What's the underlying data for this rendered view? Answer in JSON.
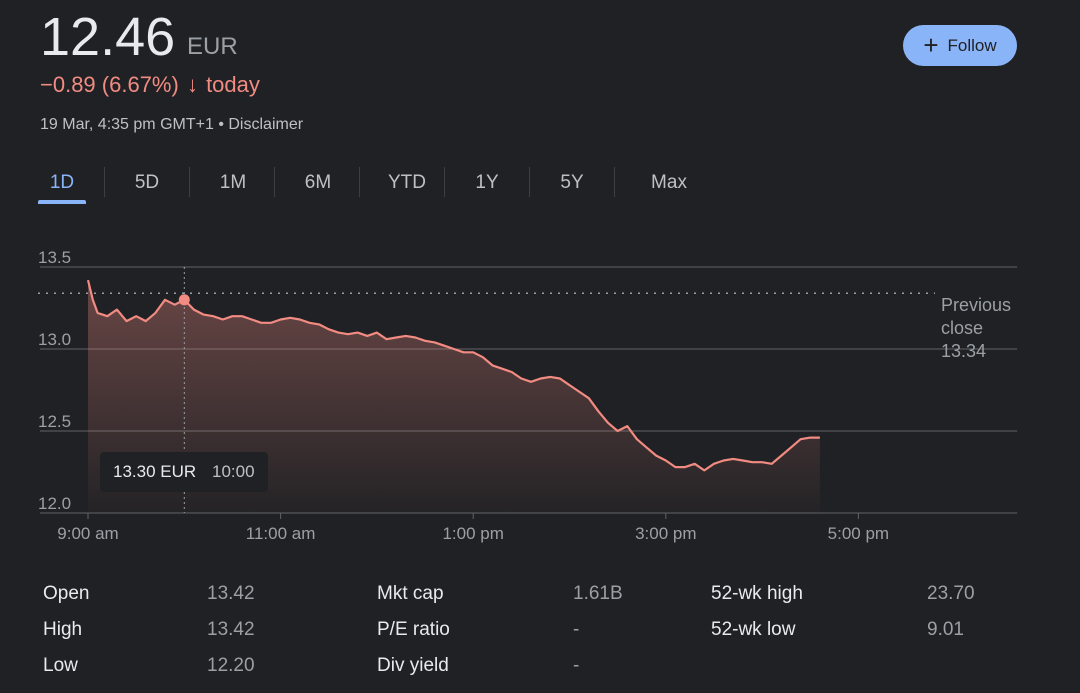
{
  "quote": {
    "price": "12.46",
    "currency": "EUR",
    "change_text": "−0.89 (6.67%)",
    "arrow": "↓",
    "change_suffix": "today",
    "timestamp": "19 Mar, 4:35 pm GMT+1",
    "separator": "•",
    "disclaimer": "Disclaimer",
    "negative_color": "#f28b82"
  },
  "follow": {
    "icon": "plus-icon",
    "label": "Follow"
  },
  "tabs": [
    "1D",
    "5D",
    "1M",
    "6M",
    "YTD",
    "1Y",
    "5Y",
    "Max"
  ],
  "active_tab": "1D",
  "chart_data": {
    "type": "line",
    "title": "",
    "xlabel": "",
    "ylabel": "",
    "x_ticks": [
      "9:00 am",
      "11:00 am",
      "1:00 pm",
      "3:00 pm",
      "5:00 pm"
    ],
    "y_ticks": [
      "13.5",
      "13.0",
      "12.5",
      "12.0"
    ],
    "ylim": [
      12.0,
      13.5
    ],
    "xlim_hours": [
      9.0,
      17.0
    ],
    "previous_close": {
      "label_lines": [
        "Previous",
        "close"
      ],
      "value": "13.34",
      "y": 13.34
    },
    "tooltip": {
      "price": "13.30 EUR",
      "time": "10:00",
      "x": 10.0,
      "y": 13.3
    },
    "series": [
      {
        "line_color": "#f28b82",
        "x": [
          9.0,
          9.05,
          9.1,
          9.2,
          9.3,
          9.4,
          9.5,
          9.6,
          9.7,
          9.8,
          9.9,
          10.0,
          10.1,
          10.2,
          10.3,
          10.4,
          10.5,
          10.6,
          10.7,
          10.8,
          10.9,
          11.0,
          11.1,
          11.2,
          11.3,
          11.4,
          11.5,
          11.6,
          11.7,
          11.8,
          11.9,
          12.0,
          12.1,
          12.2,
          12.3,
          12.4,
          12.5,
          12.6,
          12.7,
          12.8,
          12.9,
          13.0,
          13.1,
          13.2,
          13.3,
          13.4,
          13.5,
          13.6,
          13.7,
          13.8,
          13.9,
          14.0,
          14.1,
          14.2,
          14.3,
          14.4,
          14.5,
          14.6,
          14.7,
          14.8,
          14.9,
          15.0,
          15.1,
          15.2,
          15.3,
          15.4,
          15.5,
          15.6,
          15.7,
          15.8,
          15.9,
          16.0,
          16.1,
          16.2,
          16.3,
          16.4,
          16.5,
          16.55,
          16.6
        ],
        "y": [
          13.42,
          13.3,
          13.22,
          13.2,
          13.24,
          13.17,
          13.2,
          13.17,
          13.22,
          13.3,
          13.27,
          13.3,
          13.24,
          13.21,
          13.2,
          13.18,
          13.2,
          13.2,
          13.18,
          13.16,
          13.16,
          13.18,
          13.19,
          13.18,
          13.16,
          13.15,
          13.12,
          13.1,
          13.09,
          13.1,
          13.08,
          13.1,
          13.06,
          13.07,
          13.08,
          13.07,
          13.05,
          13.04,
          13.02,
          13.0,
          12.98,
          12.98,
          12.95,
          12.9,
          12.88,
          12.86,
          12.82,
          12.8,
          12.82,
          12.83,
          12.82,
          12.78,
          12.74,
          12.7,
          12.62,
          12.55,
          12.5,
          12.53,
          12.45,
          12.4,
          12.35,
          12.32,
          12.28,
          12.28,
          12.3,
          12.26,
          12.3,
          12.32,
          12.33,
          12.32,
          12.31,
          12.31,
          12.3,
          12.35,
          12.4,
          12.45,
          12.46,
          12.46,
          12.46
        ]
      }
    ]
  },
  "stats": [
    {
      "label": "Open",
      "value": "13.42"
    },
    {
      "label": "High",
      "value": "13.42"
    },
    {
      "label": "Low",
      "value": "12.20"
    },
    {
      "label": "Mkt cap",
      "value": "1.61B"
    },
    {
      "label": "P/E ratio",
      "value": "-"
    },
    {
      "label": "Div yield",
      "value": "-"
    },
    {
      "label": "52-wk high",
      "value": "23.70"
    },
    {
      "label": "52-wk low",
      "value": "9.01"
    }
  ]
}
